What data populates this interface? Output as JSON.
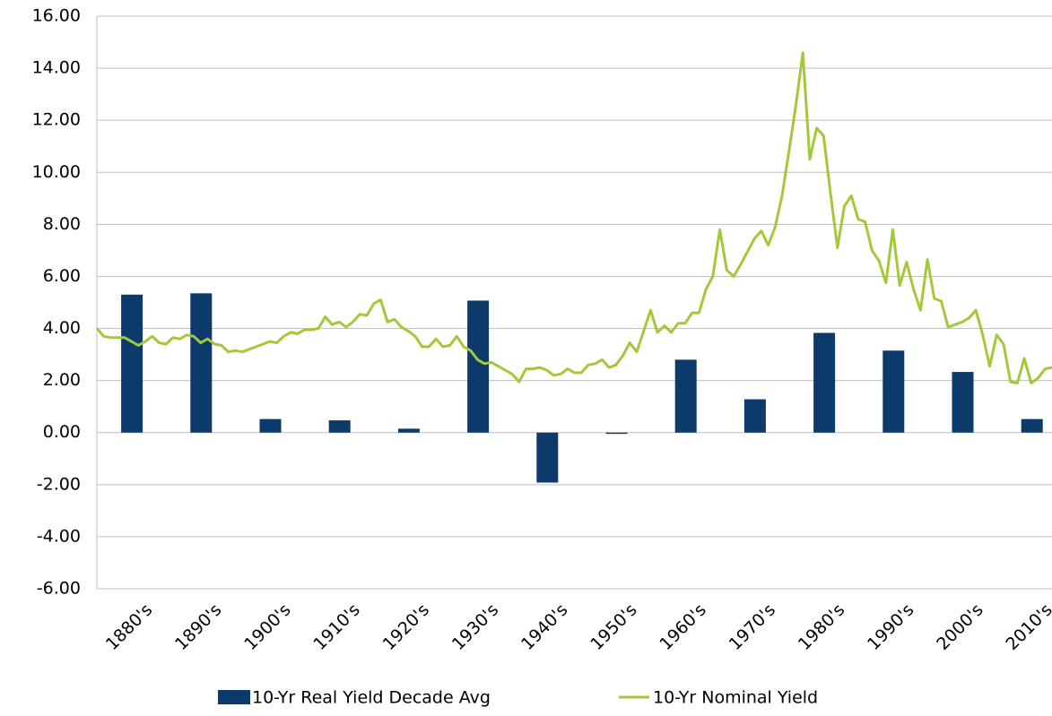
{
  "chart_data": {
    "type": "bar",
    "categories": [
      "1880's",
      "1890's",
      "1900's",
      "1910's",
      "1920's",
      "1930's",
      "1940's",
      "1950's",
      "1960's",
      "1970's",
      "1980's",
      "1990's",
      "2000's",
      "2010's"
    ],
    "ylim": [
      -6,
      16
    ],
    "yticks": [
      {
        "value": -6,
        "label": "-6.00"
      },
      {
        "value": -4,
        "label": "-4.00"
      },
      {
        "value": -2,
        "label": "-2.00"
      },
      {
        "value": 0,
        "label": "0.00"
      },
      {
        "value": 2,
        "label": "2.00"
      },
      {
        "value": 4,
        "label": "4.00"
      },
      {
        "value": 6,
        "label": "6.00"
      },
      {
        "value": 8,
        "label": "8.00"
      },
      {
        "value": 10,
        "label": "10.00"
      },
      {
        "value": 12,
        "label": "12.00"
      },
      {
        "value": 14,
        "label": "14.00"
      },
      {
        "value": 16,
        "label": "16.00"
      }
    ],
    "xlim": [
      1880,
      2018
    ],
    "grid": true,
    "legend": "bottom",
    "series": [
      {
        "name": "10-Yr Real Yield Decade Avg",
        "type": "bar",
        "color": "#0b3a6b",
        "values": [
          5.3,
          5.35,
          0.52,
          0.47,
          0.15,
          5.07,
          -1.92,
          -0.05,
          2.8,
          1.28,
          3.83,
          3.15,
          2.33,
          0.52
        ]
      },
      {
        "name": "10-Yr Nominal Yield",
        "type": "line",
        "color": "#a3c93a",
        "x": [
          1880,
          1881,
          1882,
          1883,
          1884,
          1885,
          1886,
          1887,
          1888,
          1889,
          1890,
          1891,
          1892,
          1893,
          1894,
          1895,
          1896,
          1897,
          1898,
          1899,
          1900,
          1901,
          1902,
          1903,
          1904,
          1905,
          1906,
          1907,
          1908,
          1909,
          1910,
          1911,
          1912,
          1913,
          1914,
          1915,
          1916,
          1917,
          1918,
          1919,
          1920,
          1921,
          1922,
          1923,
          1924,
          1925,
          1926,
          1927,
          1928,
          1929,
          1930,
          1931,
          1932,
          1933,
          1934,
          1935,
          1936,
          1937,
          1938,
          1939,
          1940,
          1941,
          1942,
          1943,
          1944,
          1945,
          1946,
          1947,
          1948,
          1949,
          1950,
          1951,
          1952,
          1953,
          1954,
          1955,
          1956,
          1957,
          1958,
          1959,
          1960,
          1961,
          1962,
          1963,
          1964,
          1965,
          1966,
          1967,
          1968,
          1969,
          1970,
          1971,
          1972,
          1973,
          1974,
          1975,
          1976,
          1977,
          1978,
          1979,
          1980,
          1981,
          1982,
          1983,
          1984,
          1985,
          1986,
          1987,
          1988,
          1989,
          1990,
          1991,
          1992,
          1993,
          1994,
          1995,
          1996,
          1997,
          1998,
          1999,
          2000,
          2001,
          2002,
          2003,
          2004,
          2005,
          2006,
          2007,
          2008,
          2009,
          2010,
          2011,
          2012,
          2013,
          2014,
          2015,
          2016,
          2017,
          2018
        ],
        "values": [
          4.0,
          3.7,
          3.65,
          3.65,
          3.65,
          3.5,
          3.35,
          3.5,
          3.7,
          3.45,
          3.4,
          3.65,
          3.6,
          3.75,
          3.7,
          3.45,
          3.6,
          3.4,
          3.35,
          3.1,
          3.15,
          3.1,
          3.2,
          3.3,
          3.4,
          3.5,
          3.45,
          3.7,
          3.85,
          3.8,
          3.95,
          3.95,
          4.0,
          4.45,
          4.15,
          4.25,
          4.05,
          4.25,
          4.55,
          4.5,
          4.95,
          5.1,
          4.25,
          4.35,
          4.05,
          3.9,
          3.7,
          3.3,
          3.3,
          3.6,
          3.3,
          3.35,
          3.7,
          3.3,
          3.15,
          2.8,
          2.65,
          2.7,
          2.55,
          2.4,
          2.25,
          1.95,
          2.45,
          2.45,
          2.5,
          2.4,
          2.2,
          2.25,
          2.45,
          2.3,
          2.3,
          2.6,
          2.65,
          2.8,
          2.5,
          2.6,
          2.95,
          3.45,
          3.1,
          3.9,
          4.7,
          3.85,
          4.1,
          3.85,
          4.2,
          4.2,
          4.6,
          4.6,
          5.5,
          6.0,
          7.8,
          6.25,
          6.0,
          6.45,
          6.95,
          7.45,
          7.75,
          7.2,
          7.9,
          9.1,
          10.8,
          12.6,
          14.6,
          10.5,
          11.7,
          11.4,
          9.2,
          7.1,
          8.7,
          9.1,
          8.2,
          8.1,
          7.0,
          6.6,
          5.75,
          7.8,
          5.65,
          6.55,
          5.5,
          4.7,
          6.65,
          5.15,
          5.05,
          4.05,
          4.15,
          4.25,
          4.4,
          4.7,
          3.75,
          2.55,
          3.75,
          3.4,
          1.95,
          1.9,
          2.85,
          1.9,
          2.1,
          2.45,
          2.5
        ]
      }
    ]
  }
}
